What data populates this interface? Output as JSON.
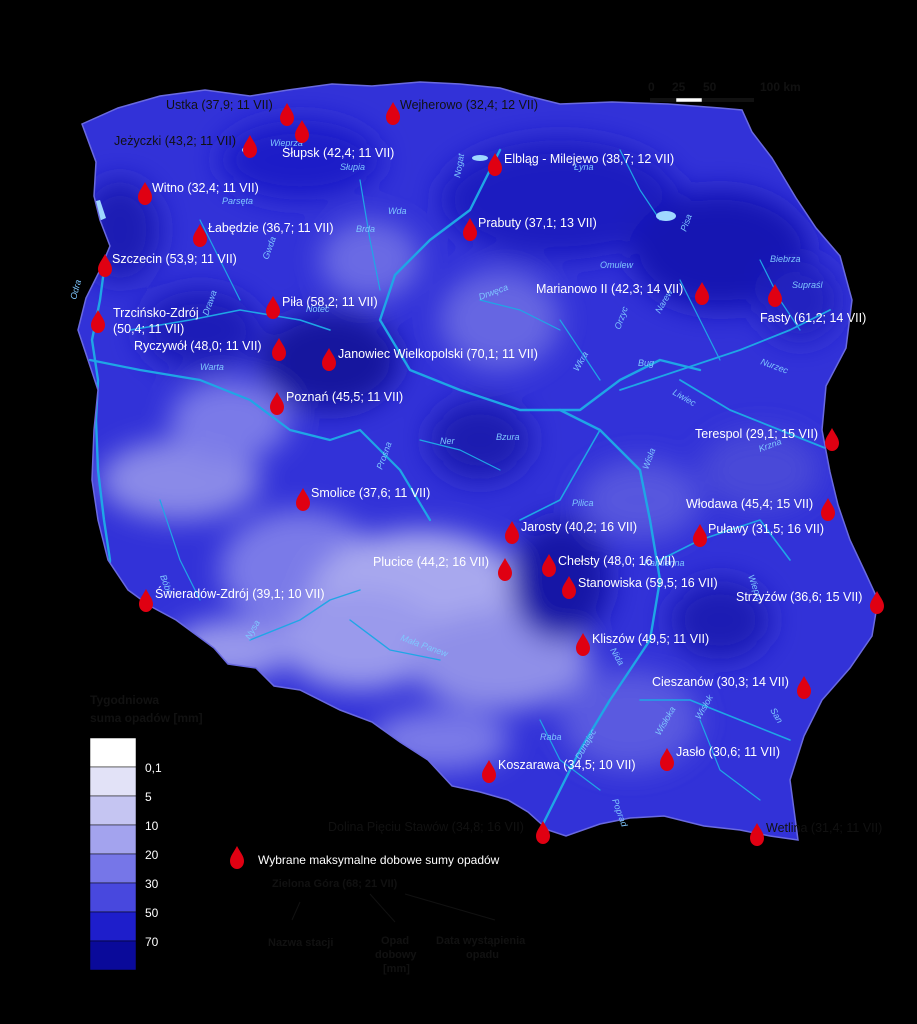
{
  "legend": {
    "title_line1": "Tygodniowa",
    "title_line2": "suma opadów [mm]",
    "classes": [
      {
        "label": "",
        "color": "#ffffff"
      },
      {
        "label": "0,1",
        "color": "#e2e2f7"
      },
      {
        "label": "5",
        "color": "#c5c5f2"
      },
      {
        "label": "10",
        "color": "#a3a3ee"
      },
      {
        "label": "20",
        "color": "#7676e8"
      },
      {
        "label": "30",
        "color": "#4848de"
      },
      {
        "label": "50",
        "color": "#1e1ecb"
      },
      {
        "label": "70",
        "color": "#0a0a9a"
      }
    ],
    "marker_text": "Wybrane maksymalne dobowe sumy opadów",
    "example_text": "Zielona Góra (68; 21 VII)",
    "anno_station": "Nazwa stacji",
    "anno_precip_1": "Opad",
    "anno_precip_2": "dobowy",
    "anno_precip_3": "[mm]",
    "anno_date_1": "Data wystąpienia",
    "anno_date_2": "opadu"
  },
  "scale": {
    "label_0": "0",
    "label_25": "25",
    "label_50": "50",
    "label_100": "100 km"
  },
  "colors": {
    "background": "#000000",
    "country_base": "#3232d8",
    "river": "#1fa6e6",
    "marker": "#e00012"
  },
  "stations": [
    {
      "label": "Ustka (37,9; 11 VII)"
    },
    {
      "label": "Wejherowo (32,4; 12 VII)"
    },
    {
      "label": "Jeżyczki (43,2; 11 VII)"
    },
    {
      "label": "Słupsk (42,4; 11 VII)"
    },
    {
      "label": "Elbląg - Milejewo (38,7; 12 VII)"
    },
    {
      "label": "Witno (32,4; 11 VII)"
    },
    {
      "label": "Łabędzie (36,7; 11 VII)"
    },
    {
      "label": "Prabuty (37,1; 13 VII)"
    },
    {
      "label": "Szczecin (53,9; 11 VII)"
    },
    {
      "label": "Marianowo II (42,3; 14 VII)"
    },
    {
      "label": "Piła (58,2; 11 VII)"
    },
    {
      "label": "Fasty (61,2; 14 VII)"
    },
    {
      "label": "Trzcińsko-Zdrój"
    },
    {
      "label": "(50,4; 11 VII)"
    },
    {
      "label": "Ryczywół (48,0; 11 VII)"
    },
    {
      "label": "Janowiec Wielkopolski (70,1; 11 VII)"
    },
    {
      "label": "Poznań (45,5; 11 VII)"
    },
    {
      "label": "Terespol (29,1; 15 VII)"
    },
    {
      "label": "Smolice (37,6; 11 VII)"
    },
    {
      "label": "Włodawa (45,4; 15 VII)"
    },
    {
      "label": "Jarosty (40,2; 16 VII)"
    },
    {
      "label": "Puławy (31,5; 16 VII)"
    },
    {
      "label": "Plucice (44,2; 16 VII)"
    },
    {
      "label": "Chełsty (48,0; 16 VII)"
    },
    {
      "label": "Stanowiska (59,5; 16 VII)"
    },
    {
      "label": "Świeradów-Zdrój (39,1; 10 VII)"
    },
    {
      "label": "Strzyżów (36,6; 15 VII)"
    },
    {
      "label": "Kliszów (49,5; 11 VII)"
    },
    {
      "label": "Cieszanów (30,3; 14 VII)"
    },
    {
      "label": "Jasło (30,6; 11 VII)"
    },
    {
      "label": "Koszarawa (34,5; 10 VII)"
    },
    {
      "label": "Dolina Pięciu Stawów (34,8; 16 VII)"
    },
    {
      "label": "Wetlina (31,4; 11 VII)"
    }
  ],
  "rivers": [
    {
      "label": "Słupia"
    },
    {
      "label": "Nogat"
    },
    {
      "label": "Parsęta"
    },
    {
      "label": "Wda"
    },
    {
      "label": "Brda"
    },
    {
      "label": "Gwda"
    },
    {
      "label": "Odra"
    },
    {
      "label": "Drawa"
    },
    {
      "label": "Noteć"
    },
    {
      "label": "Warta"
    },
    {
      "label": "Drwęca"
    },
    {
      "label": "Pisa"
    },
    {
      "label": "Narew"
    },
    {
      "label": "Biebrza"
    },
    {
      "label": "Supraśl"
    },
    {
      "label": "Omulew"
    },
    {
      "label": "Orzyc"
    },
    {
      "label": "Wkra"
    },
    {
      "label": "Bug"
    },
    {
      "label": "Liwiec"
    },
    {
      "label": "Nurzec"
    },
    {
      "label": "Krzna"
    },
    {
      "label": "Ner"
    },
    {
      "label": "Bzura"
    },
    {
      "label": "Prosna"
    },
    {
      "label": "Pilica"
    },
    {
      "label": "Wisła"
    },
    {
      "label": "Wieprz"
    },
    {
      "label": "Bóbr"
    },
    {
      "label": "Nysa"
    },
    {
      "label": "Mała Panew"
    },
    {
      "label": "Raba"
    },
    {
      "label": "Dunajec"
    },
    {
      "label": "San"
    },
    {
      "label": "Wisłok"
    },
    {
      "label": "Wisłoka"
    },
    {
      "label": "Poprad"
    },
    {
      "label": "Nida"
    },
    {
      "label": "Kamienna"
    },
    {
      "label": "Łyna"
    },
    {
      "label": "Wieprza"
    }
  ]
}
